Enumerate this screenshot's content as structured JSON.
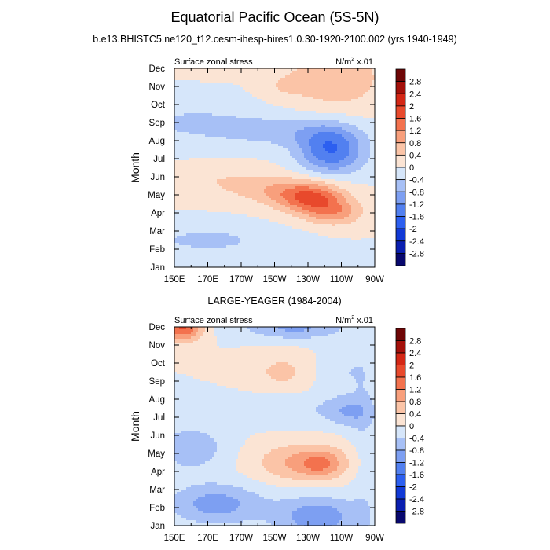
{
  "title": "Equatorial Pacific Ocean (5S-5N)",
  "subtitle": "b.e13.BHISTC5.ne120_t12.cesm-ihesp-hires1.0.30-1920-2100.002 (yrs 1940-1949)",
  "chart_data": [
    {
      "type": "heatmap",
      "title": "",
      "left_label": "Surface zonal stress",
      "units_label": "N/m",
      "units_power": "2",
      "units_scale": "x.01",
      "xlabel": "",
      "ylabel": "Month",
      "x_ticks": [
        "150E",
        "170E",
        "170W",
        "150W",
        "130W",
        "110W",
        "90W"
      ],
      "y_ticks": [
        "Jan",
        "Feb",
        "Mar",
        "Apr",
        "May",
        "Jun",
        "Jul",
        "Aug",
        "Sep",
        "Oct",
        "Nov",
        "Dec"
      ],
      "xlim": [
        150,
        270
      ],
      "contour_levels": [
        -2.8,
        -2.4,
        -2,
        -1.6,
        -1.2,
        -0.8,
        -0.4,
        0,
        0.4,
        0.8,
        1.2,
        1.6,
        2,
        2.4,
        2.8
      ],
      "colorbar_labels": [
        "2.8",
        "2.4",
        "2",
        "1.6",
        "1.2",
        "0.8",
        "0.4",
        "0",
        "-0.4",
        "-0.8",
        "-1.2",
        "-1.6",
        "-2",
        "-2.4",
        "-2.8"
      ],
      "colors": [
        "#08086e",
        "#0a1fb0",
        "#1139d6",
        "#2c5ff0",
        "#5280f0",
        "#7d9ff2",
        "#a7c0f6",
        "#d6e6fa",
        "#fbe4d4",
        "#fbc4a7",
        "#f89f7c",
        "#f3724e",
        "#e8492c",
        "#d42715",
        "#a4100a",
        "#6e0606"
      ],
      "features": [
        {
          "lon": 170,
          "month": 11.5,
          "sx": 25,
          "sy": 0.5,
          "amp": 0.35
        },
        {
          "lon": 247,
          "month": 10.5,
          "sx": 20,
          "sy": 1.3,
          "amp": 0.75
        },
        {
          "lon": 215,
          "month": 10.0,
          "sx": 10,
          "sy": 0.5,
          "amp": 0.3
        },
        {
          "lon": 160,
          "month": 8.0,
          "sx": 32,
          "sy": 0.9,
          "amp": -0.45
        },
        {
          "lon": 215,
          "month": 7.5,
          "sx": 25,
          "sy": 0.6,
          "amp": -0.5
        },
        {
          "lon": 244,
          "month": 6.5,
          "sx": 14,
          "sy": 0.95,
          "amp": -1.6
        },
        {
          "lon": 213,
          "month": 4.2,
          "sx": 20,
          "sy": 0.55,
          "amp": 0.55
        },
        {
          "lon": 232,
          "month": 3.8,
          "sx": 14,
          "sy": 0.6,
          "amp": 1.5
        },
        {
          "lon": 246,
          "month": 3.0,
          "sx": 12,
          "sy": 0.5,
          "amp": 0.9
        },
        {
          "lon": 180,
          "month": 4.8,
          "sx": 28,
          "sy": 0.6,
          "amp": 0.35
        },
        {
          "lon": 170,
          "month": 1.5,
          "sx": 30,
          "sy": 0.6,
          "amp": -0.5
        },
        {
          "lon": 225,
          "month": 0.3,
          "sx": 25,
          "sy": 0.4,
          "amp": -0.35
        }
      ]
    },
    {
      "type": "heatmap",
      "title": "LARGE-YEAGER (1984-2004)",
      "left_label": "Surface zonal stress",
      "units_label": "N/m",
      "units_power": "2",
      "units_scale": "x.01",
      "xlabel": "",
      "ylabel": "Month",
      "x_ticks": [
        "150E",
        "170E",
        "170W",
        "150W",
        "130W",
        "110W",
        "90W"
      ],
      "y_ticks": [
        "Jan",
        "Feb",
        "Mar",
        "Apr",
        "May",
        "Jun",
        "Jul",
        "Aug",
        "Sep",
        "Oct",
        "Nov",
        "Dec"
      ],
      "xlim": [
        150,
        270
      ],
      "contour_levels": [
        -2.8,
        -2.4,
        -2,
        -1.6,
        -1.2,
        -0.8,
        -0.4,
        0,
        0.4,
        0.8,
        1.2,
        1.6,
        2,
        2.4,
        2.8
      ],
      "colorbar_labels": [
        "2.8",
        "2.4",
        "2",
        "1.6",
        "1.2",
        "0.8",
        "0.4",
        "0",
        "-0.4",
        "-0.8",
        "-1.2",
        "-1.6",
        "-2",
        "-2.4",
        "-2.8"
      ],
      "colors": [
        "#08086e",
        "#0a1fb0",
        "#1139d6",
        "#2c5ff0",
        "#5280f0",
        "#7d9ff2",
        "#a7c0f6",
        "#d6e6fa",
        "#fbe4d4",
        "#fbc4a7",
        "#f89f7c",
        "#f3724e",
        "#e8492c",
        "#d42715",
        "#a4100a",
        "#6e0606"
      ],
      "features": [
        {
          "lon": 155,
          "month": 11.0,
          "sx": 8,
          "sy": 0.55,
          "amp": 1.7
        },
        {
          "lon": 222,
          "month": 11.0,
          "sx": 22,
          "sy": 0.5,
          "amp": -0.9
        },
        {
          "lon": 215,
          "month": 8.5,
          "sx": 15,
          "sy": 0.8,
          "amp": 0.5
        },
        {
          "lon": 248,
          "month": 8.5,
          "sx": 12,
          "sy": 0.8,
          "amp": -0.4
        },
        {
          "lon": 215,
          "month": 6.5,
          "sx": 25,
          "sy": 0.6,
          "amp": -0.4
        },
        {
          "lon": 254,
          "month": 6.3,
          "sx": 10,
          "sy": 0.6,
          "amp": -0.7
        },
        {
          "lon": 228,
          "month": 3.5,
          "sx": 20,
          "sy": 0.75,
          "amp": 0.95
        },
        {
          "lon": 238,
          "month": 3.4,
          "sx": 8,
          "sy": 0.5,
          "amp": 0.6
        },
        {
          "lon": 160,
          "month": 4.3,
          "sx": 15,
          "sy": 0.9,
          "amp": -0.7
        },
        {
          "lon": 175,
          "month": 1.2,
          "sx": 20,
          "sy": 0.8,
          "amp": -1.0
        },
        {
          "lon": 236,
          "month": 0.5,
          "sx": 18,
          "sy": 0.8,
          "amp": -1.1
        },
        {
          "lon": 264,
          "month": 5.0,
          "sx": 6,
          "sy": 5.0,
          "amp": -0.3
        }
      ]
    }
  ]
}
